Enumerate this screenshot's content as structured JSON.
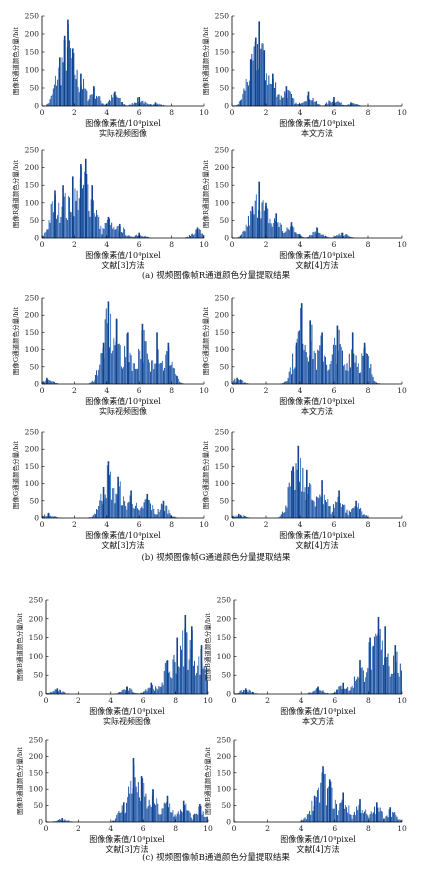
{
  "figure": {
    "captions": [
      "(a) 视频图像帧R通道颜色分量提取结果",
      "(b) 视频图像帧G通道颜色分量提取结果",
      "(c) 视频图像帧B通道颜色分量提取结果"
    ]
  },
  "chart_data": [
    {
      "type": "bar",
      "title": "实际视频图像",
      "xlabel": "图像像素值/10⁴pixel",
      "ylabel": "图像R通道颜色分量/bit",
      "xlim": [
        0,
        10
      ],
      "ylim": [
        0,
        250
      ],
      "xticks": [
        0,
        2,
        4,
        6,
        8,
        10
      ],
      "yticks": [
        0,
        50,
        100,
        150,
        200,
        250
      ],
      "peaks": [
        {
          "x": 1.1,
          "y": 135
        },
        {
          "x": 1.4,
          "y": 195
        },
        {
          "x": 1.6,
          "y": 240
        },
        {
          "x": 1.9,
          "y": 160
        },
        {
          "x": 2.4,
          "y": 90
        },
        {
          "x": 3.2,
          "y": 55
        },
        {
          "x": 4.5,
          "y": 40
        },
        {
          "x": 6.0,
          "y": 25
        },
        {
          "x": 7.0,
          "y": 10
        }
      ]
    },
    {
      "type": "bar",
      "title": "本文方法",
      "xlabel": "图像像素值/10⁴pixel",
      "ylabel": "图像R通道颜色分量/bit",
      "xlim": [
        0,
        10
      ],
      "ylim": [
        0,
        250
      ],
      "xticks": [
        0,
        2,
        4,
        6,
        8,
        10
      ],
      "yticks": [
        0,
        50,
        100,
        150,
        200,
        250
      ],
      "peaks": [
        {
          "x": 1.1,
          "y": 130
        },
        {
          "x": 1.4,
          "y": 190
        },
        {
          "x": 1.6,
          "y": 235
        },
        {
          "x": 1.9,
          "y": 155
        },
        {
          "x": 2.4,
          "y": 90
        },
        {
          "x": 3.2,
          "y": 55
        },
        {
          "x": 4.5,
          "y": 40
        },
        {
          "x": 6.0,
          "y": 25
        },
        {
          "x": 7.0,
          "y": 10
        }
      ]
    },
    {
      "type": "bar",
      "title": "文献[3]方法",
      "xlabel": "图像像素值/10⁴pixel",
      "ylabel": "图像R通道颜色分量/bit",
      "xlim": [
        0,
        10
      ],
      "ylim": [
        0,
        250
      ],
      "xticks": [
        0,
        2,
        4,
        6,
        8,
        10
      ],
      "yticks": [
        0,
        50,
        100,
        150,
        200,
        250
      ],
      "peaks": [
        {
          "x": 0.8,
          "y": 135
        },
        {
          "x": 1.3,
          "y": 150
        },
        {
          "x": 1.9,
          "y": 175
        },
        {
          "x": 2.4,
          "y": 210
        },
        {
          "x": 2.7,
          "y": 225
        },
        {
          "x": 3.1,
          "y": 150
        },
        {
          "x": 4.1,
          "y": 60
        },
        {
          "x": 4.8,
          "y": 40
        },
        {
          "x": 6.0,
          "y": 15
        },
        {
          "x": 9.6,
          "y": 30
        }
      ]
    },
    {
      "type": "bar",
      "title": "文献[4]方法",
      "xlabel": "图像像素值/10⁴pixel",
      "ylabel": "图像R通道颜色分量/bit",
      "xlim": [
        0,
        10
      ],
      "ylim": [
        0,
        250
      ],
      "xticks": [
        0,
        2,
        4,
        6,
        8,
        10
      ],
      "yticks": [
        0,
        50,
        100,
        150,
        200,
        250
      ],
      "peaks": [
        {
          "x": 1.2,
          "y": 90
        },
        {
          "x": 1.6,
          "y": 160
        },
        {
          "x": 2.0,
          "y": 100
        },
        {
          "x": 2.6,
          "y": 70
        },
        {
          "x": 3.5,
          "y": 45
        },
        {
          "x": 5.0,
          "y": 30
        },
        {
          "x": 6.5,
          "y": 15
        }
      ]
    },
    {
      "type": "bar",
      "title": "实际视频图像",
      "xlabel": "图像像素值/10⁴pixel",
      "ylabel": "图像G通道颜色分量/bit",
      "xlim": [
        0,
        10
      ],
      "ylim": [
        0,
        250
      ],
      "xticks": [
        0,
        2,
        4,
        6,
        8,
        10
      ],
      "yticks": [
        0,
        50,
        100,
        150,
        200,
        250
      ],
      "peaks": [
        {
          "x": 0.3,
          "y": 18
        },
        {
          "x": 3.8,
          "y": 120
        },
        {
          "x": 4.1,
          "y": 240
        },
        {
          "x": 4.6,
          "y": 190
        },
        {
          "x": 5.3,
          "y": 150
        },
        {
          "x": 6.2,
          "y": 175
        },
        {
          "x": 7.1,
          "y": 150
        },
        {
          "x": 7.8,
          "y": 120
        }
      ]
    },
    {
      "type": "bar",
      "title": "本文方法",
      "xlabel": "图像像素值/10⁴pixel",
      "ylabel": "图像G通道颜色分量/bit",
      "xlim": [
        0,
        10
      ],
      "ylim": [
        0,
        250
      ],
      "xticks": [
        0,
        2,
        4,
        6,
        8,
        10
      ],
      "yticks": [
        0,
        50,
        100,
        150,
        200,
        250
      ],
      "peaks": [
        {
          "x": 0.3,
          "y": 18
        },
        {
          "x": 3.8,
          "y": 120
        },
        {
          "x": 4.1,
          "y": 235
        },
        {
          "x": 4.6,
          "y": 185
        },
        {
          "x": 5.3,
          "y": 150
        },
        {
          "x": 6.2,
          "y": 170
        },
        {
          "x": 7.1,
          "y": 150
        },
        {
          "x": 7.8,
          "y": 120
        }
      ]
    },
    {
      "type": "bar",
      "title": "文献[3]方法",
      "xlabel": "图像像素值/10⁴pixel",
      "ylabel": "图像G通道颜色分量/bit",
      "xlim": [
        0,
        10
      ],
      "ylim": [
        0,
        250
      ],
      "xticks": [
        0,
        2,
        4,
        6,
        8,
        10
      ],
      "yticks": [
        0,
        50,
        100,
        150,
        200,
        250
      ],
      "peaks": [
        {
          "x": 0.4,
          "y": 15
        },
        {
          "x": 3.8,
          "y": 90
        },
        {
          "x": 4.1,
          "y": 165
        },
        {
          "x": 4.7,
          "y": 120
        },
        {
          "x": 5.5,
          "y": 80
        },
        {
          "x": 6.5,
          "y": 70
        },
        {
          "x": 7.5,
          "y": 50
        }
      ]
    },
    {
      "type": "bar",
      "title": "文献[4]方法",
      "xlabel": "图像像素值/10⁴pixel",
      "ylabel": "图像G通道颜色分量/bit",
      "xlim": [
        0,
        10
      ],
      "ylim": [
        0,
        250
      ],
      "xticks": [
        0,
        2,
        4,
        6,
        8,
        10
      ],
      "yticks": [
        0,
        50,
        100,
        150,
        200,
        250
      ],
      "peaks": [
        {
          "x": 0.4,
          "y": 12
        },
        {
          "x": 3.6,
          "y": 150
        },
        {
          "x": 3.9,
          "y": 210
        },
        {
          "x": 4.4,
          "y": 140
        },
        {
          "x": 5.3,
          "y": 110
        },
        {
          "x": 6.3,
          "y": 80
        },
        {
          "x": 7.3,
          "y": 50
        }
      ]
    },
    {
      "type": "bar",
      "title": "实际视频图像",
      "xlabel": "图像像素值/10⁴pixel",
      "ylabel": "图像B通道颜色分量/bit",
      "xlim": [
        0,
        10
      ],
      "ylim": [
        0,
        250
      ],
      "xticks": [
        0,
        2,
        4,
        6,
        8,
        10
      ],
      "yticks": [
        0,
        50,
        100,
        150,
        200,
        250
      ],
      "peaks": [
        {
          "x": 0.7,
          "y": 15
        },
        {
          "x": 5.0,
          "y": 20
        },
        {
          "x": 6.5,
          "y": 30
        },
        {
          "x": 7.5,
          "y": 90
        },
        {
          "x": 8.1,
          "y": 150
        },
        {
          "x": 8.6,
          "y": 210
        },
        {
          "x": 9.0,
          "y": 180
        },
        {
          "x": 9.6,
          "y": 130
        }
      ]
    },
    {
      "type": "bar",
      "title": "本文方法",
      "xlabel": "图像像素值/10⁴pixel",
      "ylabel": "图像B通道颜色分量/bit",
      "xlim": [
        0,
        10
      ],
      "ylim": [
        0,
        250
      ],
      "xticks": [
        0,
        2,
        4,
        6,
        8,
        10
      ],
      "yticks": [
        0,
        50,
        100,
        150,
        200,
        250
      ],
      "peaks": [
        {
          "x": 0.7,
          "y": 15
        },
        {
          "x": 5.0,
          "y": 20
        },
        {
          "x": 6.5,
          "y": 30
        },
        {
          "x": 7.5,
          "y": 90
        },
        {
          "x": 8.1,
          "y": 150
        },
        {
          "x": 8.6,
          "y": 205
        },
        {
          "x": 9.0,
          "y": 180
        },
        {
          "x": 9.6,
          "y": 130
        }
      ]
    },
    {
      "type": "bar",
      "title": "文献[3]方法",
      "xlabel": "图像像素值/10⁴pixel",
      "ylabel": "图像B通道颜色分量/bit",
      "xlim": [
        0,
        10
      ],
      "ylim": [
        0,
        250
      ],
      "xticks": [
        0,
        2,
        4,
        6,
        8,
        10
      ],
      "yticks": [
        0,
        50,
        100,
        150,
        200,
        250
      ],
      "peaks": [
        {
          "x": 1.0,
          "y": 12
        },
        {
          "x": 4.8,
          "y": 60
        },
        {
          "x": 5.4,
          "y": 195
        },
        {
          "x": 5.9,
          "y": 140
        },
        {
          "x": 6.6,
          "y": 100
        },
        {
          "x": 7.5,
          "y": 80
        },
        {
          "x": 8.5,
          "y": 65
        },
        {
          "x": 9.5,
          "y": 55
        }
      ]
    },
    {
      "type": "bar",
      "title": "文献[4]方法",
      "xlabel": "图像像素值/10⁴pixel",
      "ylabel": "图像B通道颜色分量/bit",
      "xlim": [
        0,
        10
      ],
      "ylim": [
        0,
        250
      ],
      "xticks": [
        0,
        2,
        4,
        6,
        8,
        10
      ],
      "yticks": [
        0,
        50,
        100,
        150,
        200,
        250
      ],
      "peaks": [
        {
          "x": 4.8,
          "y": 80
        },
        {
          "x": 5.3,
          "y": 170
        },
        {
          "x": 5.7,
          "y": 130
        },
        {
          "x": 6.5,
          "y": 90
        },
        {
          "x": 7.5,
          "y": 70
        },
        {
          "x": 8.5,
          "y": 60
        },
        {
          "x": 9.3,
          "y": 45
        }
      ]
    }
  ]
}
